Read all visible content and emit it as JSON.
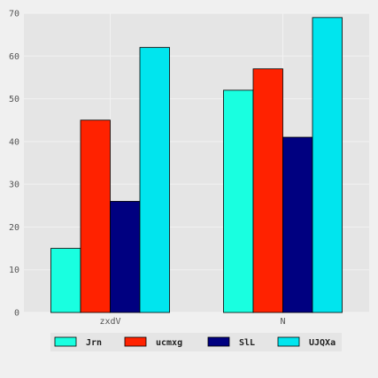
{
  "chart_data": {
    "type": "bar",
    "title": "",
    "xlabel": "",
    "ylabel": "",
    "categories": [
      "zxdV",
      "N"
    ],
    "series": [
      {
        "name": "Jrn",
        "values": [
          15,
          52
        ],
        "color": "#19ffe0"
      },
      {
        "name": "ucmxg",
        "values": [
          45,
          57
        ],
        "color": "#ff2200"
      },
      {
        "name": "SlL",
        "values": [
          26,
          41
        ],
        "color": "#000080"
      },
      {
        "name": "UJQXa",
        "values": [
          62,
          69
        ],
        "color": "#00e5ee"
      }
    ],
    "ylim": [
      0,
      70
    ],
    "yticks": [
      0,
      10,
      20,
      30,
      40,
      50,
      60,
      70
    ],
    "grid": true,
    "legend_position": "bottom",
    "colors": {
      "plot_background": "#e5e5e5",
      "grid": "#f2f2f2",
      "figure_background": "#f0f0f0",
      "bar_edge": "#000000"
    }
  }
}
